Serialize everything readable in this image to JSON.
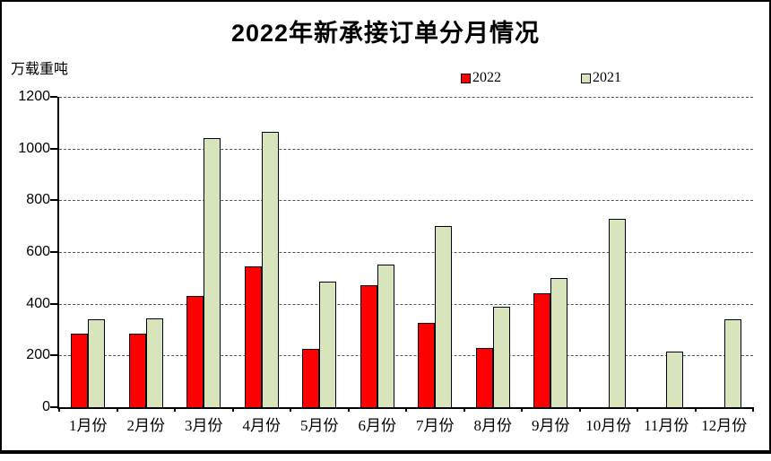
{
  "window": {
    "background": "#ffffff",
    "border_color": "#000000"
  },
  "chart": {
    "axis_color": "#000000",
    "gridline_color": "#555555",
    "gridline_style": "dashed"
  },
  "chart_data": {
    "type": "bar",
    "title": "2022年新承接订单分月情况",
    "xlabel": "",
    "ylabel": "万载重吨",
    "categories": [
      "1月份",
      "2月份",
      "3月份",
      "4月份",
      "5月份",
      "6月份",
      "7月份",
      "8月份",
      "9月份",
      "10月份",
      "11月份",
      "12月份"
    ],
    "series": [
      {
        "name": "2022",
        "color": "#ff0000",
        "values": [
          285,
          285,
          430,
          545,
          225,
          470,
          325,
          230,
          440,
          null,
          null,
          null
        ]
      },
      {
        "name": "2021",
        "color": "#d8e4bc",
        "values": [
          340,
          345,
          1040,
          1065,
          485,
          550,
          700,
          390,
          500,
          730,
          215,
          340
        ]
      }
    ],
    "ylim": [
      0,
      1200
    ],
    "yticks": [
      0,
      200,
      400,
      600,
      800,
      1000,
      1200
    ],
    "grid": true,
    "legend_position": "top-right"
  }
}
